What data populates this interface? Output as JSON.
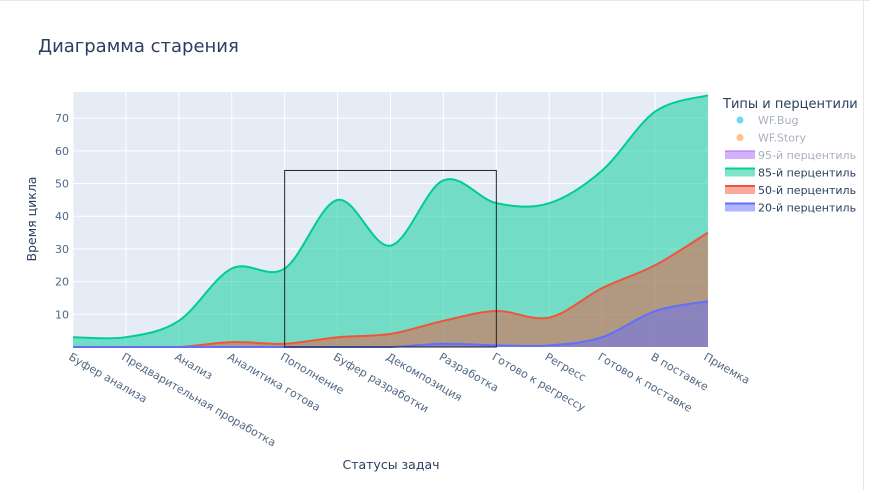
{
  "chart_data": {
    "type": "area",
    "title": "Диаграмма старения",
    "xlabel": "Статусы задач",
    "ylabel": "Время цикла",
    "categories": [
      "Буфер анализа",
      "Предварительная проработка",
      "Анализ",
      "Аналитика готова",
      "Пополнение",
      "Буфер разработки",
      "Декомпозиция",
      "Разработка",
      "Готово к регрессу",
      "Регресс",
      "Готово к поставке",
      "В поставке",
      "Приемка"
    ],
    "y_ticks": [
      10,
      20,
      30,
      40,
      50,
      60,
      70
    ],
    "ylim": [
      0,
      78
    ],
    "legend_title": "Типы и перцентили",
    "legend_position": "right",
    "series": [
      {
        "name": "85-й перцентиль",
        "color": "#00cc96",
        "values": [
          3,
          3,
          8,
          24,
          24,
          45,
          31,
          51,
          44,
          44,
          54,
          72,
          77
        ]
      },
      {
        "name": "50-й перцентиль",
        "color": "#ef553b",
        "values": [
          0,
          0,
          0,
          1.5,
          1,
          3,
          4,
          8,
          11,
          9,
          18,
          25,
          35
        ]
      },
      {
        "name": "20-й перцентиль",
        "color": "#636efa",
        "values": [
          0,
          0,
          0,
          0,
          0,
          0,
          0,
          1,
          0.5,
          0.5,
          3,
          11,
          14
        ]
      }
    ],
    "legend_entries": [
      {
        "name": "WF.Bug",
        "marker": "dot",
        "color": "#6fd8f2"
      },
      {
        "name": "WF.Story",
        "marker": "dot",
        "color": "#ffc08a"
      },
      {
        "name": "95-й перцентиль",
        "marker": "band",
        "color": "#ab63fa"
      },
      {
        "name": "85-й перцентиль",
        "marker": "band",
        "color": "#00cc96"
      },
      {
        "name": "50-й перцентиль",
        "marker": "band",
        "color": "#ef553b"
      },
      {
        "name": "20-й перцентиль",
        "marker": "band",
        "color": "#636efa"
      }
    ],
    "highlight_range": {
      "from": "Пополнение",
      "to": "Готово к регрессу",
      "y_top": 54
    }
  }
}
